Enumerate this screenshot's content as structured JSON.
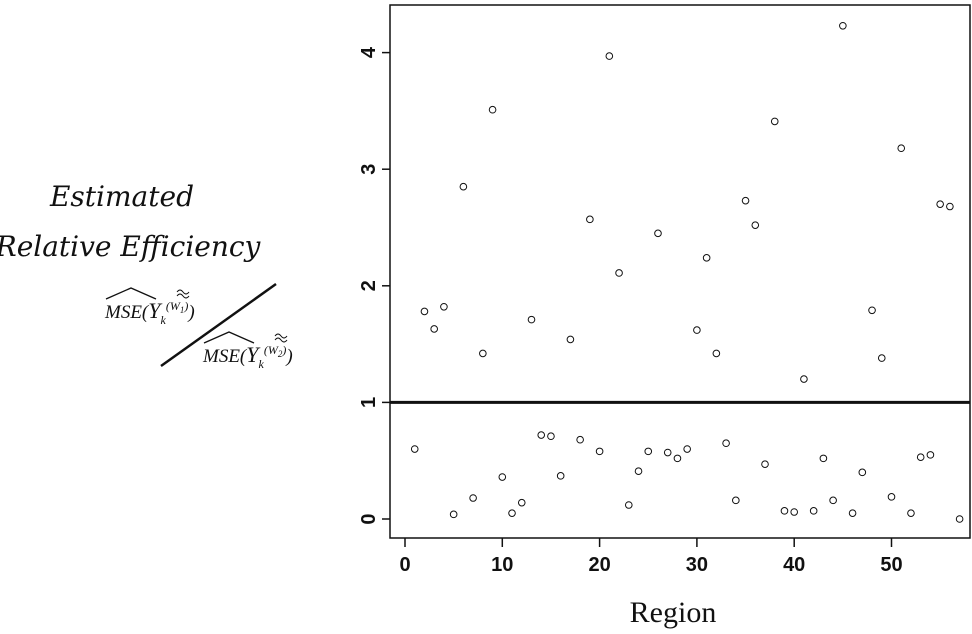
{
  "chart_data": {
    "type": "scatter",
    "title": "",
    "xlabel": "Region",
    "ylabel_lines": [
      "Estimated",
      "Relative Efficiency"
    ],
    "ylabel_formula": {
      "numerator": "MSE(Y_k^(W1))",
      "denominator": "MSE(Y_k^(W2))"
    },
    "xlim": [
      -1,
      58
    ],
    "ylim": [
      -0.1,
      4.3
    ],
    "x_ticks": [
      0,
      10,
      20,
      30,
      40,
      50
    ],
    "y_ticks": [
      0,
      1,
      2,
      3,
      4
    ],
    "reference_line_y": 1,
    "grid": false,
    "marker": "open-circle",
    "x": [
      1,
      2,
      3,
      4,
      5,
      6,
      7,
      8,
      9,
      10,
      11,
      12,
      13,
      14,
      15,
      16,
      17,
      18,
      19,
      20,
      21,
      22,
      23,
      24,
      25,
      26,
      27,
      28,
      29,
      30,
      31,
      32,
      33,
      34,
      35,
      36,
      37,
      38,
      39,
      40,
      41,
      42,
      43,
      44,
      45,
      46,
      47,
      48,
      49,
      50,
      51,
      52,
      53,
      54,
      55,
      56,
      57
    ],
    "y": [
      0.6,
      1.78,
      1.63,
      1.82,
      0.04,
      2.85,
      0.18,
      1.42,
      3.51,
      0.36,
      0.05,
      0.14,
      1.71,
      0.72,
      0.71,
      0.37,
      1.54,
      0.68,
      2.57,
      0.58,
      3.97,
      2.11,
      0.12,
      0.41,
      0.58,
      2.45,
      0.57,
      0.52,
      0.6,
      1.62,
      2.24,
      1.42,
      0.65,
      0.16,
      2.73,
      2.52,
      0.47,
      3.41,
      0.07,
      0.06,
      1.2,
      0.07,
      0.52,
      0.16,
      4.23,
      0.05,
      0.4,
      1.79,
      1.38,
      0.19,
      3.18,
      0.05,
      0.53,
      0.55,
      2.7,
      2.68,
      0.0
    ]
  }
}
